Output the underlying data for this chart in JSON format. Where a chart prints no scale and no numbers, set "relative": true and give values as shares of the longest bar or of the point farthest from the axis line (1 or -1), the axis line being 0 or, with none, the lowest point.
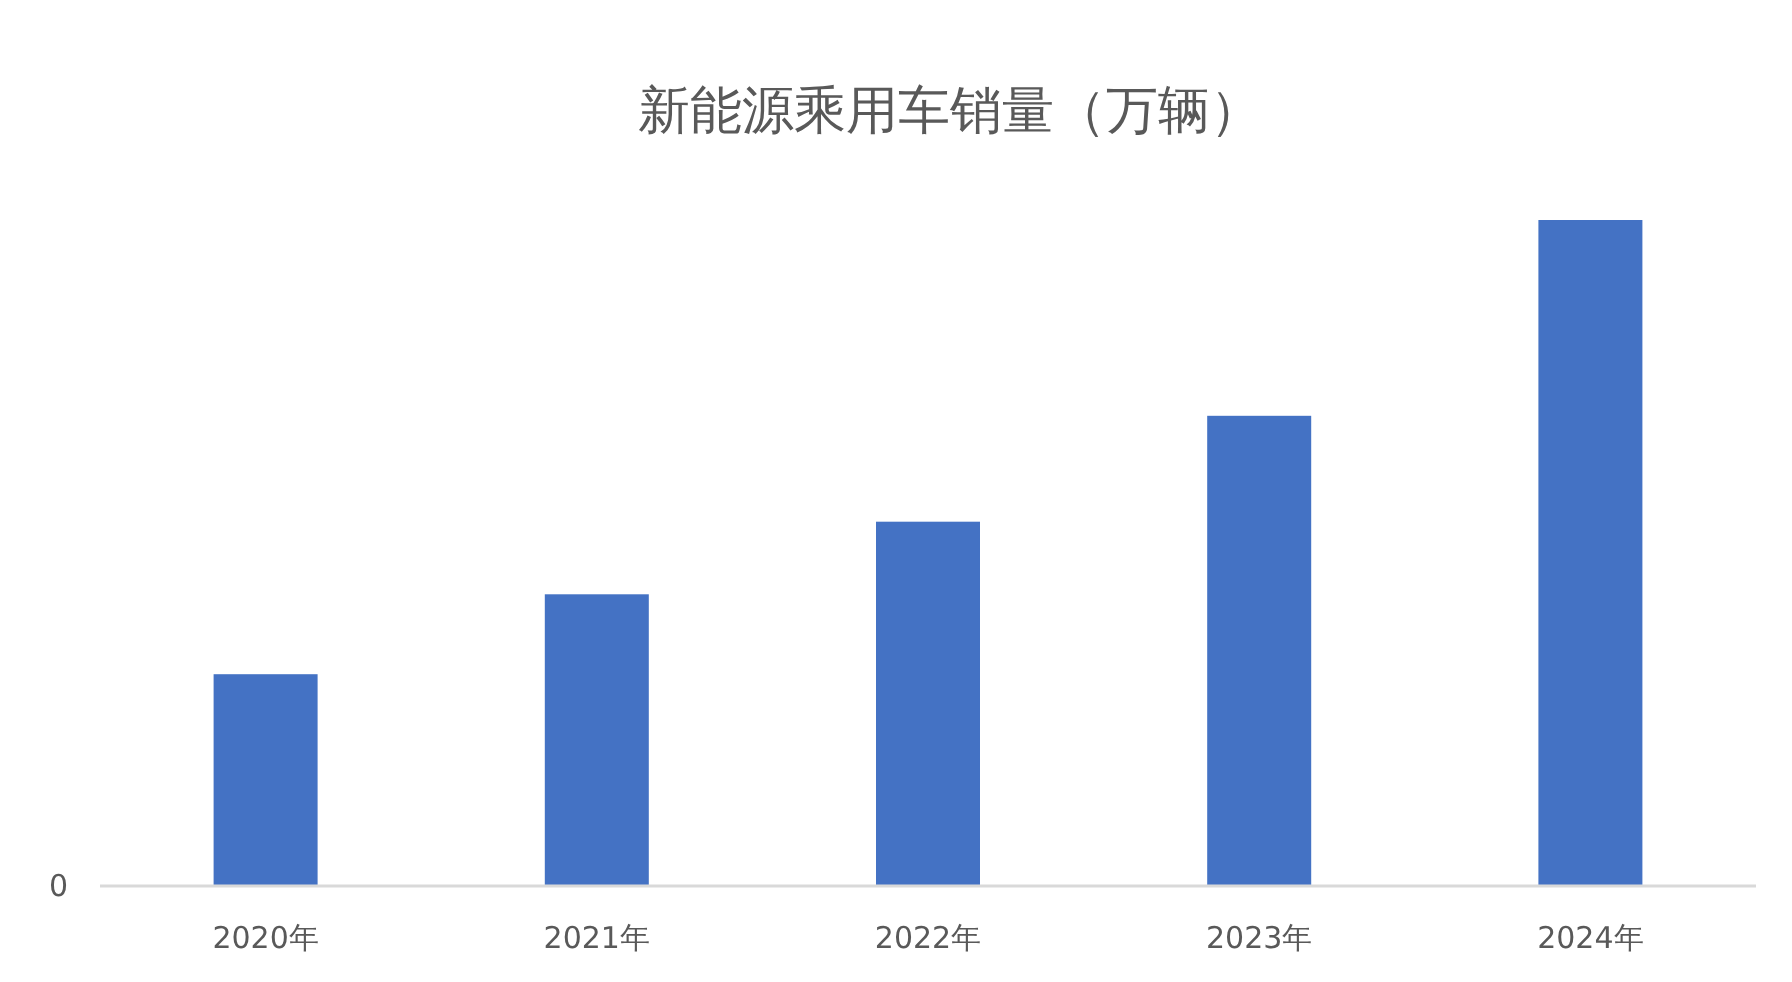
{
  "chart_data": {
    "type": "bar",
    "title": "新能源乘用车销量（万辆）",
    "relative": true,
    "categories": [
      "2020年",
      "2021年",
      "2022年",
      "2023年",
      "2024年"
    ],
    "values": [
      0.318,
      0.438,
      0.547,
      0.706,
      1
    ],
    "color": "#4472c4",
    "annotations": [
      "0"
    ]
  }
}
